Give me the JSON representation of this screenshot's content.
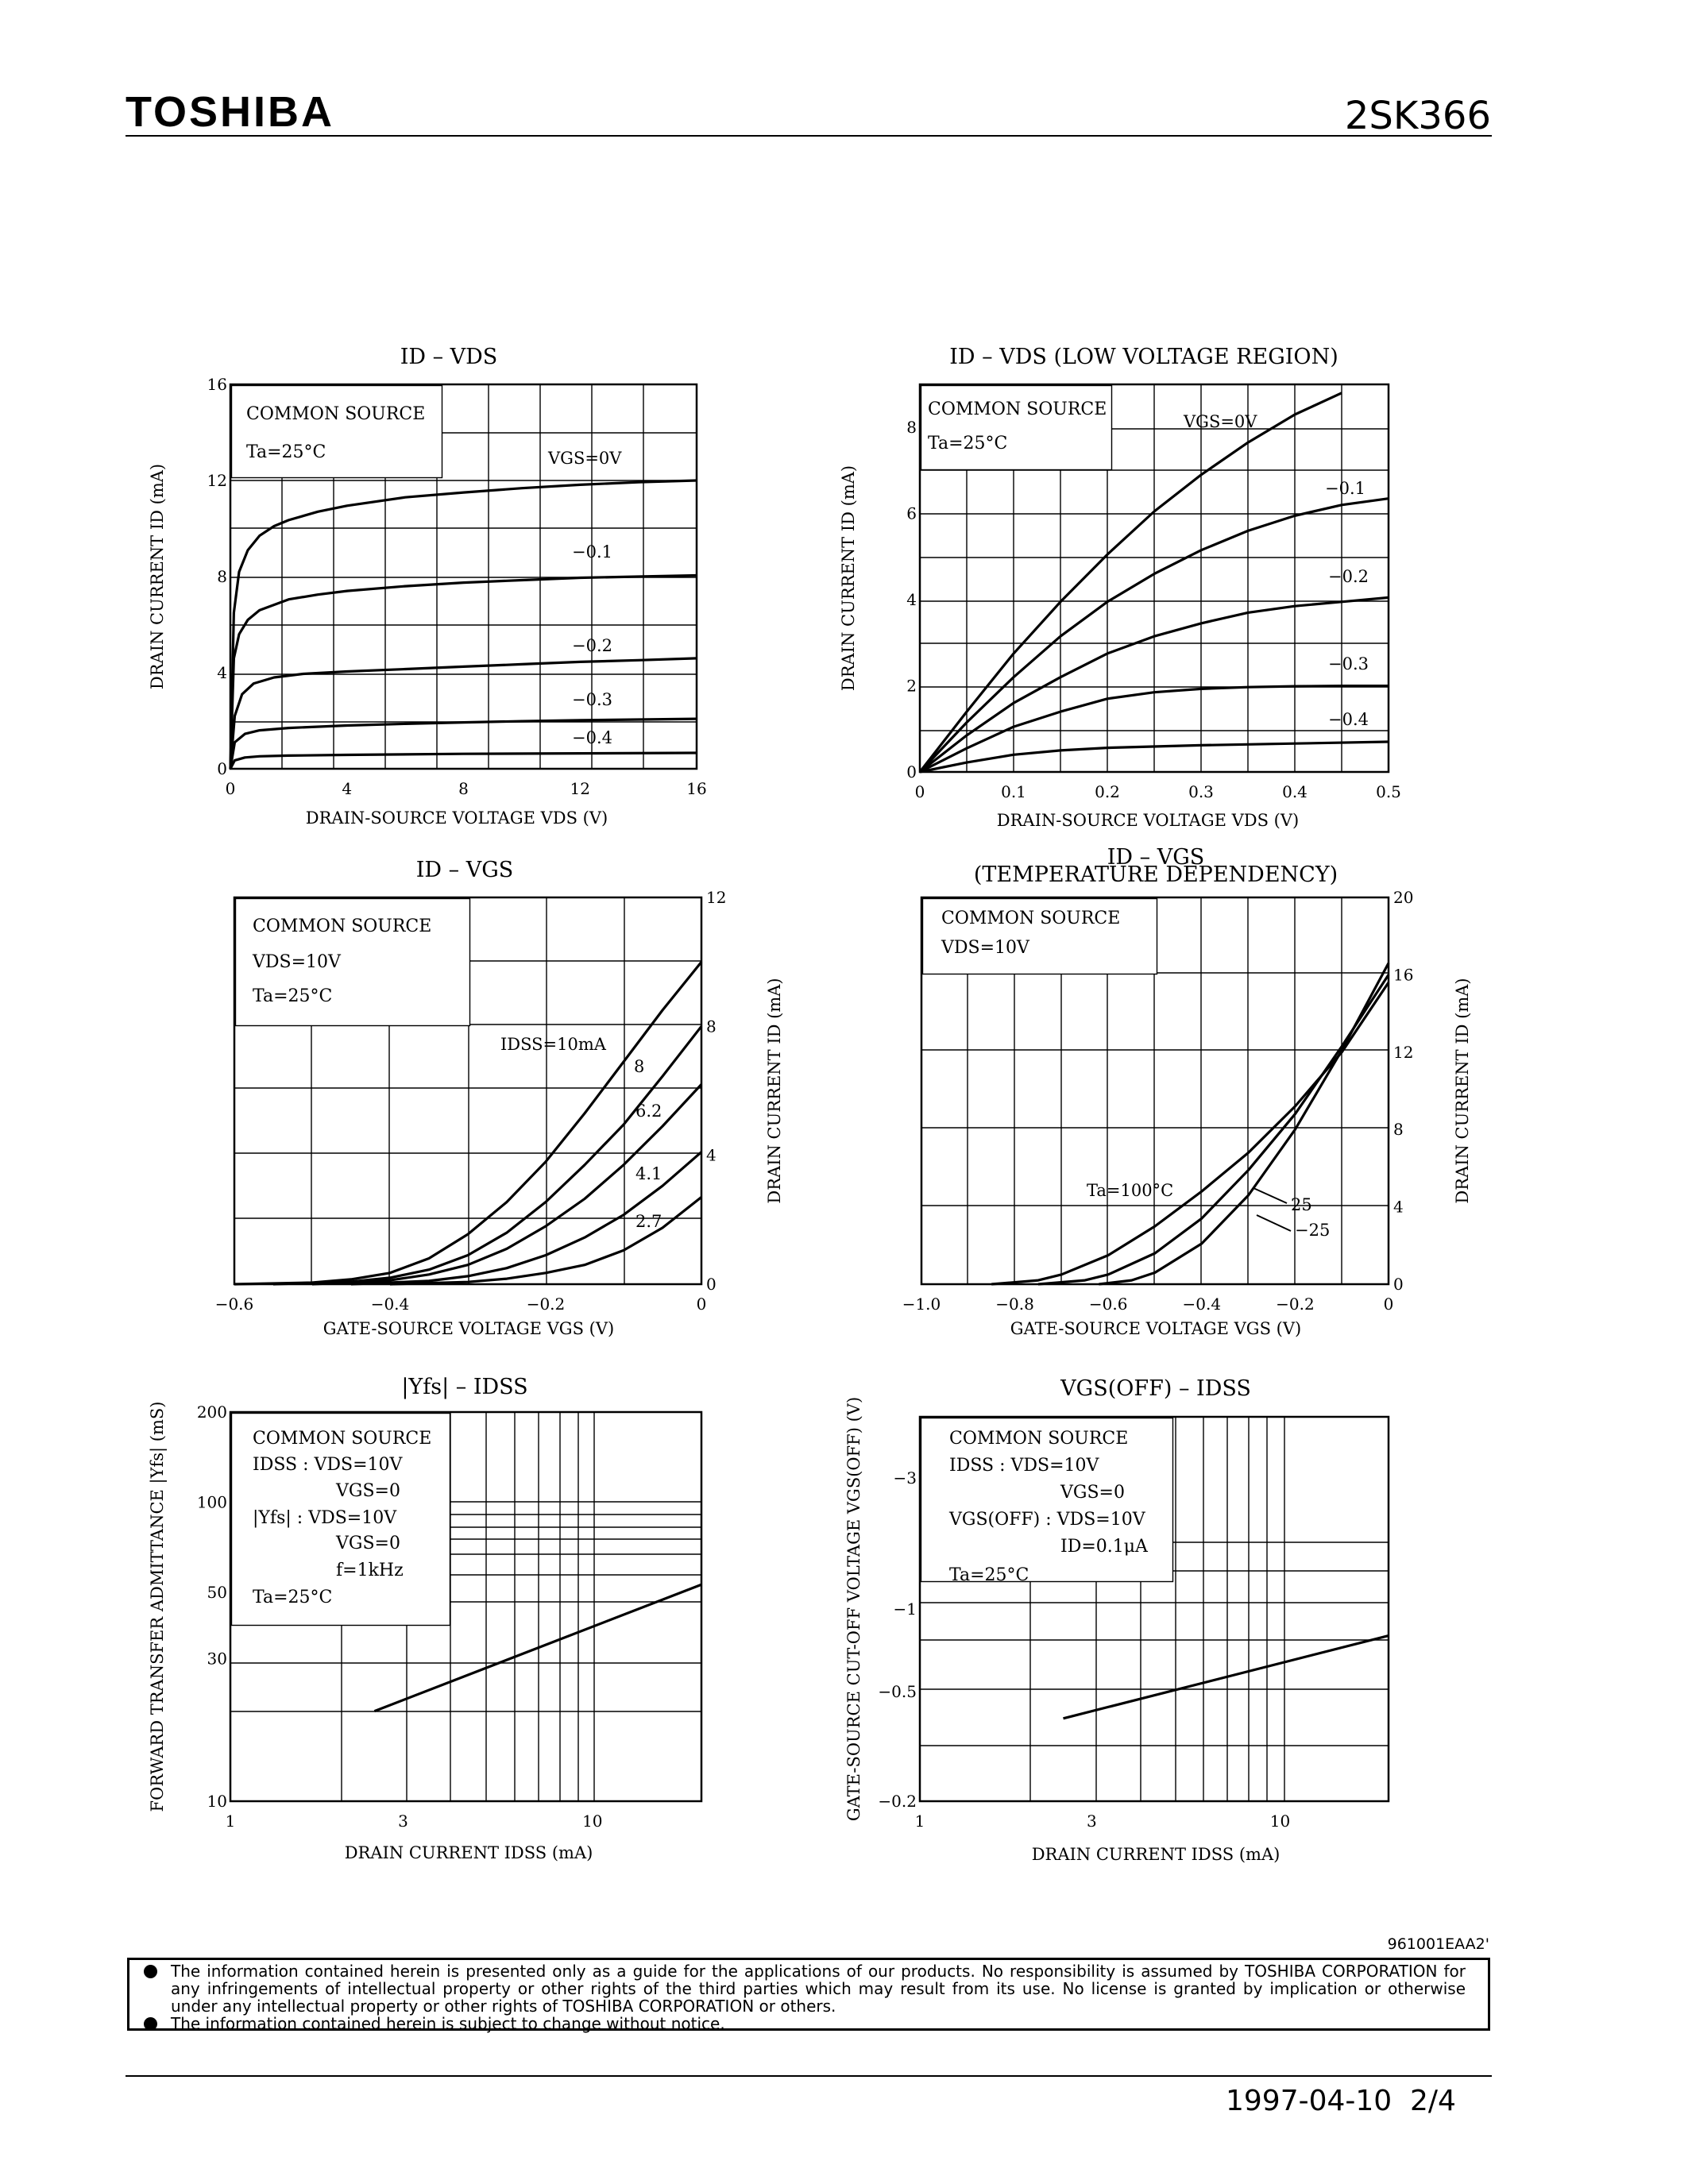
{
  "header": {
    "brand": "TOSHIBA",
    "part_number": "2SK366"
  },
  "footer": {
    "doc_code": "961001EAA2'",
    "disclaimer_1": "The information contained herein is presented only as a guide for the applications of our products. No responsibility is assumed by TOSHIBA CORPORATION for any infringements of intellectual property or other rights of the third parties which may result from its use. No license is granted by implication or otherwise under any intellectual property or other rights of TOSHIBA CORPORATION or others.",
    "disclaimer_2": "The information contained herein is subject to change without notice.",
    "date": "1997-04-10",
    "page": "2/4"
  },
  "chart_data": [
    {
      "id": "c1",
      "type": "line",
      "title": "ID – VDS",
      "xlabel": "DRAIN-SOURCE VOLTAGE VDS (V)",
      "ylabel": "DRAIN CURRENT ID (mA)",
      "xlim": [
        0,
        16
      ],
      "ylim": [
        0,
        16
      ],
      "xticks": [
        "0",
        "4",
        "8",
        "12",
        "16"
      ],
      "yticks": [
        "0",
        "4",
        "8",
        "12",
        "16"
      ],
      "annotations": [
        "COMMON SOURCE",
        "Ta=25°C"
      ],
      "series": [
        {
          "name": "VGS=0V",
          "x": [
            0,
            0.12,
            0.3,
            0.6,
            1,
            1.5,
            2,
            3,
            4,
            6,
            8,
            10,
            12,
            14,
            16
          ],
          "y": [
            0,
            6.5,
            8.2,
            9.1,
            9.7,
            10.1,
            10.35,
            10.7,
            10.95,
            11.3,
            11.5,
            11.68,
            11.82,
            11.93,
            12.0
          ]
        },
        {
          "name": "−0.1",
          "x": [
            0,
            0.12,
            0.3,
            0.6,
            1,
            2,
            3,
            4,
            6,
            8,
            10,
            12,
            14,
            16
          ],
          "y": [
            0,
            4.6,
            5.6,
            6.2,
            6.6,
            7.05,
            7.25,
            7.4,
            7.6,
            7.75,
            7.85,
            7.95,
            8.0,
            8.05
          ]
        },
        {
          "name": "−0.2",
          "x": [
            0,
            0.15,
            0.4,
            0.8,
            1.5,
            2.5,
            4,
            6,
            8,
            10,
            12,
            14,
            16
          ],
          "y": [
            0,
            2.2,
            3.1,
            3.55,
            3.8,
            3.95,
            4.05,
            4.15,
            4.25,
            4.35,
            4.45,
            4.52,
            4.6
          ]
        },
        {
          "name": "−0.3",
          "x": [
            0,
            0.15,
            0.5,
            1,
            2,
            4,
            6,
            8,
            10,
            12,
            14,
            16
          ],
          "y": [
            0,
            1.1,
            1.45,
            1.6,
            1.7,
            1.8,
            1.87,
            1.93,
            1.98,
            2.02,
            2.05,
            2.08
          ]
        },
        {
          "name": "−0.4",
          "x": [
            0,
            0.15,
            0.5,
            1,
            2,
            4,
            8,
            12,
            16
          ],
          "y": [
            0,
            0.35,
            0.47,
            0.52,
            0.55,
            0.58,
            0.62,
            0.64,
            0.66
          ]
        }
      ]
    },
    {
      "id": "c2",
      "type": "line",
      "title": "ID – VDS",
      "subtitle": "(LOW VOLTAGE REGION)",
      "xlabel": "DRAIN-SOURCE VOLTAGE VDS (V)",
      "ylabel": "DRAIN CURRENT ID (mA)",
      "xlim": [
        0,
        0.5
      ],
      "ylim": [
        0,
        9
      ],
      "xticks": [
        "0",
        "0.1",
        "0.2",
        "0.3",
        "0.4",
        "0.5"
      ],
      "yticks": [
        "0",
        "2",
        "4",
        "6",
        "8"
      ],
      "annotations": [
        "COMMON SOURCE",
        "Ta=25°C"
      ],
      "series": [
        {
          "name": "VGS=0V",
          "x": [
            0,
            0.05,
            0.1,
            0.15,
            0.2,
            0.25,
            0.3,
            0.35,
            0.4,
            0.45
          ],
          "y": [
            0,
            1.4,
            2.75,
            3.95,
            5.05,
            6.05,
            6.9,
            7.65,
            8.3,
            8.8
          ]
        },
        {
          "name": "−0.1",
          "x": [
            0,
            0.05,
            0.1,
            0.15,
            0.2,
            0.25,
            0.3,
            0.35,
            0.4,
            0.45,
            0.5
          ],
          "y": [
            0,
            1.15,
            2.2,
            3.15,
            3.95,
            4.6,
            5.15,
            5.6,
            5.95,
            6.2,
            6.35
          ]
        },
        {
          "name": "−0.2",
          "x": [
            0,
            0.05,
            0.1,
            0.15,
            0.2,
            0.25,
            0.3,
            0.35,
            0.4,
            0.45,
            0.5
          ],
          "y": [
            0,
            0.85,
            1.6,
            2.2,
            2.75,
            3.15,
            3.45,
            3.7,
            3.85,
            3.95,
            4.05
          ]
        },
        {
          "name": "−0.3",
          "x": [
            0,
            0.05,
            0.1,
            0.15,
            0.2,
            0.25,
            0.3,
            0.35,
            0.4,
            0.45,
            0.5
          ],
          "y": [
            0,
            0.55,
            1.05,
            1.4,
            1.7,
            1.85,
            1.93,
            1.97,
            1.99,
            2.0,
            2.0
          ]
        },
        {
          "name": "−0.4",
          "x": [
            0,
            0.05,
            0.1,
            0.15,
            0.2,
            0.3,
            0.4,
            0.5
          ],
          "y": [
            0,
            0.22,
            0.4,
            0.5,
            0.56,
            0.62,
            0.66,
            0.7
          ]
        }
      ]
    },
    {
      "id": "c3",
      "type": "line",
      "title": "ID – VGS",
      "xlabel": "GATE-SOURCE VOLTAGE VGS (V)",
      "ylabel": "DRAIN CURRENT ID (mA)",
      "xlim": [
        -0.6,
        0
      ],
      "ylim": [
        0,
        12
      ],
      "xticks": [
        "−0.6",
        "−0.4",
        "−0.2",
        "0"
      ],
      "yticks": [
        "0",
        "4",
        "8",
        "12"
      ],
      "annotations": [
        "COMMON SOURCE",
        "VDS=10V",
        "Ta=25°C"
      ],
      "series": [
        {
          "name": "IDSS=10mA",
          "x": [
            -0.6,
            -0.5,
            -0.45,
            -0.4,
            -0.35,
            -0.3,
            -0.25,
            -0.2,
            -0.15,
            -0.1,
            -0.05,
            0
          ],
          "y": [
            0,
            0.05,
            0.15,
            0.35,
            0.8,
            1.55,
            2.55,
            3.8,
            5.3,
            6.9,
            8.5,
            10.0
          ]
        },
        {
          "name": "8",
          "x": [
            -0.55,
            -0.45,
            -0.4,
            -0.35,
            -0.3,
            -0.25,
            -0.2,
            -0.15,
            -0.1,
            -0.05,
            0
          ],
          "y": [
            0,
            0.08,
            0.2,
            0.45,
            0.9,
            1.6,
            2.55,
            3.7,
            4.95,
            6.45,
            8.0
          ]
        },
        {
          "name": "6.2",
          "x": [
            -0.5,
            -0.4,
            -0.35,
            -0.3,
            -0.25,
            -0.2,
            -0.15,
            -0.1,
            -0.05,
            0
          ],
          "y": [
            0,
            0.12,
            0.3,
            0.6,
            1.1,
            1.8,
            2.65,
            3.7,
            4.9,
            6.2
          ]
        },
        {
          "name": "4.1",
          "x": [
            -0.45,
            -0.35,
            -0.3,
            -0.25,
            -0.2,
            -0.15,
            -0.1,
            -0.05,
            0
          ],
          "y": [
            0,
            0.1,
            0.25,
            0.5,
            0.9,
            1.45,
            2.15,
            3.05,
            4.1
          ]
        },
        {
          "name": "2.7",
          "x": [
            -0.4,
            -0.3,
            -0.25,
            -0.2,
            -0.15,
            -0.1,
            -0.05,
            0
          ],
          "y": [
            0,
            0.07,
            0.17,
            0.35,
            0.6,
            1.05,
            1.75,
            2.7
          ]
        }
      ]
    },
    {
      "id": "c4",
      "type": "line",
      "title": "ID – VGS",
      "subtitle": "(TEMPERATURE DEPENDENCY)",
      "xlabel": "GATE-SOURCE VOLTAGE VGS (V)",
      "ylabel": "DRAIN CURRENT ID (mA)",
      "xlim": [
        -1.0,
        0
      ],
      "ylim": [
        0,
        20
      ],
      "xticks": [
        "−1.0",
        "−0.8",
        "−0.6",
        "−0.4",
        "−0.2",
        "0"
      ],
      "yticks": [
        "0",
        "4",
        "8",
        "12",
        "16",
        "20"
      ],
      "annotations": [
        "COMMON SOURCE",
        "VDS=10V"
      ],
      "series": [
        {
          "name": "Ta=100°C",
          "x": [
            -0.85,
            -0.75,
            -0.7,
            -0.6,
            -0.5,
            -0.4,
            -0.3,
            -0.2,
            -0.1,
            0
          ],
          "y": [
            0,
            0.2,
            0.5,
            1.5,
            3.0,
            4.8,
            6.8,
            9.2,
            12.0,
            15.6
          ]
        },
        {
          "name": "25",
          "x": [
            -0.75,
            -0.65,
            -0.6,
            -0.5,
            -0.4,
            -0.3,
            -0.2,
            -0.1,
            0
          ],
          "y": [
            0,
            0.2,
            0.5,
            1.6,
            3.4,
            5.9,
            8.8,
            12.3,
            16.0
          ]
        },
        {
          "name": "−25",
          "x": [
            -0.62,
            -0.55,
            -0.5,
            -0.4,
            -0.3,
            -0.2,
            -0.1,
            0
          ],
          "y": [
            0,
            0.2,
            0.6,
            2.1,
            4.6,
            8.0,
            12.1,
            16.6
          ]
        }
      ]
    },
    {
      "id": "c5",
      "type": "line",
      "title": "|Yfs| – IDSS",
      "xlabel": "DRAIN CURRENT IDSS (mA)",
      "ylabel": "FORWARD TRANSFER ADMITTANCE |Yfs| (mS)",
      "xscale": "log",
      "yscale": "log",
      "xlim": [
        1,
        20
      ],
      "ylim": [
        10,
        200
      ],
      "xticks": [
        "1",
        "3",
        "10"
      ],
      "yticks": [
        "10",
        "30",
        "50",
        "100",
        "200"
      ],
      "annotations": [
        "COMMON SOURCE",
        "IDSS : VDS=10V",
        "VGS=0",
        "|Yfs| : VDS=10V",
        "VGS=0",
        "f=1kHz",
        "Ta=25°C"
      ],
      "series": [
        {
          "name": "|Yfs|",
          "x": [
            2.5,
            20
          ],
          "y": [
            20,
            53
          ]
        }
      ]
    },
    {
      "id": "c6",
      "type": "line",
      "title": "VGS(OFF) – IDSS",
      "xlabel": "DRAIN CURRENT IDSS (mA)",
      "ylabel": "GATE-SOURCE CUT-OFF VOLTAGE VGS(OFF) (V)",
      "xscale": "log",
      "yscale": "log",
      "xlim": [
        1,
        20
      ],
      "ylim": [
        -0.2,
        -5
      ],
      "xticks": [
        "1",
        "3",
        "10"
      ],
      "yticks": [
        "−0.2",
        "−0.5",
        "−1",
        "−3"
      ],
      "annotations": [
        "COMMON SOURCE",
        "IDSS : VDS=10V",
        "VGS=0",
        "VGS(OFF) : VDS=10V",
        "ID=0.1μA",
        "Ta=25°C"
      ],
      "series": [
        {
          "name": "VGS(OFF)",
          "x": [
            2.5,
            20
          ],
          "y": [
            -0.4,
            -0.8
          ]
        }
      ]
    }
  ]
}
